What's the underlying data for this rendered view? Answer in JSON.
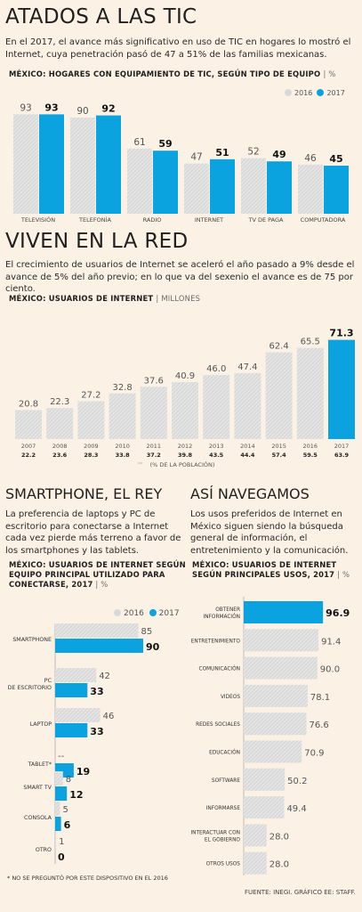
{
  "colors": {
    "y2016": "#d9d9d9",
    "y2017": "#0aa3e0",
    "background": "#fbf1e4",
    "text": "#1f1f1f"
  },
  "section1": {
    "title": "ATADOS A LAS TIC",
    "text": "En el 2017, el avance más significativo en uso de TIC en hogares lo mostró el Internet, cuya penetración pasó de 47 a 51% de las familias mexicanas.",
    "subtitle": "MÉXICO: HOGARES CON EQUIPAMIENTO DE TIC, SEGÚN TIPO DE EQUIPO",
    "unit": "%"
  },
  "section2": {
    "title": "VIVEN EN LA RED",
    "text": "El crecimiento de usuarios de Internet se aceleró el año pasado a 9% desde el avance de 5% del año previo; en lo que va del sexenio el avance es de 75 por ciento.",
    "subtitle": "MÉXICO: USUARIOS DE INTERNET",
    "unit": "MILLONES"
  },
  "section3": {
    "title": "SMARTPHONE, EL REY",
    "text": "La preferencia de laptops y PC de escritorio para conectarse a Internet cada vez pierde más terreno a favor de los smartphones y las tablets.",
    "subtitle_line1": "MÉXICO: USUARIOS DE INTERNET SEGÚN",
    "subtitle_line2": "EQUIPO PRINCIPAL UTILIZADO PARA",
    "subtitle_line3": "CONECTARSE, 2017",
    "unit": "%"
  },
  "section4": {
    "title": "ASÍ NAVEGAMOS",
    "text": "Los usos preferidos de Internet en México siguen siendo la búsqueda general de información, el entretenimiento y la comunicación.",
    "subtitle_line1": "MÉXICO: USUARIOS DE INTERNET",
    "subtitle_line2": "SEGÚN PRINCIPALES USOS, 2017",
    "unit": "%"
  },
  "footnote": "* NO SE PREGUNTÓ POR ESTE DISPOSITIVO EN EL 2016",
  "source": "FUENTE: INEGI. GRÁFICO EE: STAFF.",
  "chart_data": [
    {
      "type": "bar",
      "categories": [
        "TELEVISIÓN",
        "TELEFONÍA",
        "RADIO",
        "INTERNET",
        "TV DE PAGA",
        "COMPUTADORA"
      ],
      "series": [
        {
          "name": "2016",
          "values": [
            93,
            90,
            61,
            47,
            52,
            46
          ]
        },
        {
          "name": "2017",
          "values": [
            93,
            92,
            59,
            51,
            49,
            45
          ]
        }
      ],
      "ylim": [
        0,
        100
      ],
      "legend": "top-right"
    },
    {
      "type": "bar",
      "categories": [
        "2007",
        "2008",
        "2009",
        "2010",
        "2011",
        "2012",
        "2013",
        "2014",
        "2015",
        "2016",
        "2017"
      ],
      "values": [
        20.8,
        22.3,
        27.2,
        32.8,
        37.6,
        40.9,
        46.0,
        47.4,
        62.4,
        65.5,
        71.3
      ],
      "percent_of_population": [
        "22.2",
        "23.6",
        "28.3",
        "33.8",
        "37.2",
        "39.8",
        "43.5",
        "44.4",
        "57.4",
        "59.5",
        "63.9"
      ],
      "percent_label": "(% DE LA POBLACIÓN)",
      "ylim": [
        0,
        80
      ]
    },
    {
      "type": "bar",
      "orientation": "horizontal",
      "categories": [
        "SMARTPHONE",
        "PC DE ESCRITORIO",
        "LAPTOP",
        "TABLET*",
        "SMART TV",
        "CONSOLA",
        "OTRO"
      ],
      "series": [
        {
          "name": "2016",
          "values": [
            85,
            42,
            46,
            null,
            8,
            5,
            1
          ],
          "labels": [
            "85",
            "42",
            "46",
            "--",
            "8",
            "5",
            "1"
          ]
        },
        {
          "name": "2017",
          "values": [
            90,
            33,
            33,
            19,
            12,
            6,
            0
          ],
          "labels": [
            "90",
            "33",
            "33",
            "19",
            "12",
            "6",
            "0"
          ]
        }
      ],
      "xlim": [
        0,
        100
      ],
      "legend": "top"
    },
    {
      "type": "bar",
      "orientation": "horizontal",
      "categories": [
        "OBTENER INFORMACIÓN",
        "ENTRETENIMIENTO",
        "COMUNICACIÓN",
        "VIDEOS",
        "REDES SOCIALES",
        "EDUCACIÓN",
        "SOFTWARE",
        "INFORMARSE",
        "INTERACTUAR CON EL GOBIERNO",
        "OTROS USOS"
      ],
      "values": [
        96.9,
        91.4,
        90.0,
        78.1,
        76.6,
        70.9,
        50.2,
        49.4,
        28.0,
        28.0
      ],
      "labels": [
        "96.9",
        "91.4",
        "90.0",
        "78.1",
        "76.6",
        "70.9",
        "50.2",
        "49.4",
        "28.0",
        "28.0"
      ],
      "xlim": [
        0,
        100
      ]
    }
  ]
}
